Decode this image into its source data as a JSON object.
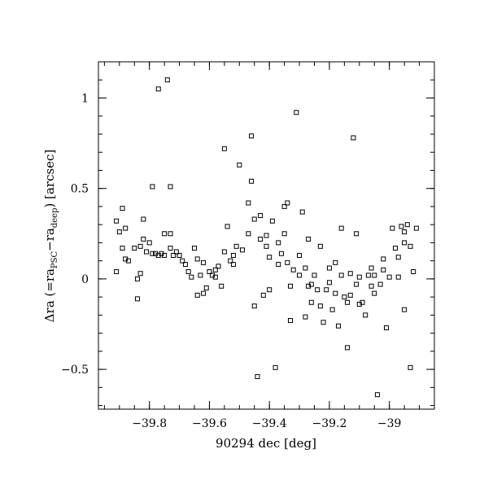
{
  "chart_data": {
    "type": "scatter",
    "xlabel": "90294 dec [deg]",
    "ylabel_parts": {
      "main": "Δra (=ra",
      "sub1": "PSC",
      "mid": "−ra",
      "sub2": "deep",
      "end": ") [arcsec]"
    },
    "xlim": [
      -39.97,
      -38.85
    ],
    "ylim": [
      -0.72,
      1.2
    ],
    "x_ticks": [
      {
        "value": -39.8,
        "label": "−39.8"
      },
      {
        "value": -39.6,
        "label": "−39.6"
      },
      {
        "value": -39.4,
        "label": "−39.4"
      },
      {
        "value": -39.2,
        "label": "−39.2"
      },
      {
        "value": -39.0,
        "label": "−39"
      }
    ],
    "y_ticks": [
      {
        "value": -0.5,
        "label": "−0.5"
      },
      {
        "value": 0,
        "label": "0"
      },
      {
        "value": 0.5,
        "label": "0.5"
      },
      {
        "value": 1,
        "label": "1"
      }
    ],
    "x_minor_step": 0.05,
    "y_minor_step": 0.1,
    "grid": false,
    "marker": "open-square",
    "points": [
      [
        -39.91,
        0.32
      ],
      [
        -39.9,
        0.26
      ],
      [
        -39.89,
        0.39
      ],
      [
        -39.89,
        0.17
      ],
      [
        -39.88,
        0.28
      ],
      [
        -39.88,
        0.11
      ],
      [
        -39.87,
        0.1
      ],
      [
        -39.91,
        0.04
      ],
      [
        -39.85,
        0.17
      ],
      [
        -39.84,
        0.0
      ],
      [
        -39.84,
        -0.11
      ],
      [
        -39.83,
        0.03
      ],
      [
        -39.82,
        0.33
      ],
      [
        -39.82,
        0.22
      ],
      [
        -39.83,
        0.18
      ],
      [
        -39.81,
        0.15
      ],
      [
        -39.8,
        0.2
      ],
      [
        -39.79,
        0.51
      ],
      [
        -39.78,
        0.14
      ],
      [
        -39.77,
        1.05
      ],
      [
        -39.76,
        0.14
      ],
      [
        -39.75,
        0.25
      ],
      [
        -39.75,
        0.13
      ],
      [
        -39.74,
        1.1
      ],
      [
        -39.73,
        0.51
      ],
      [
        -39.73,
        0.25
      ],
      [
        -39.72,
        0.13
      ],
      [
        -39.71,
        0.15
      ],
      [
        -39.7,
        0.13
      ],
      [
        -39.68,
        0.08
      ],
      [
        -39.67,
        0.04
      ],
      [
        -39.66,
        0.01
      ],
      [
        -39.65,
        0.17
      ],
      [
        -39.64,
        0.11
      ],
      [
        -39.64,
        -0.09
      ],
      [
        -39.63,
        0.02
      ],
      [
        -39.62,
        -0.08
      ],
      [
        -39.61,
        -0.05
      ],
      [
        -39.6,
        0.04
      ],
      [
        -39.59,
        0.02
      ],
      [
        -39.58,
        0.01
      ],
      [
        -39.57,
        0.07
      ],
      [
        -39.56,
        -0.04
      ],
      [
        -39.55,
        0.72
      ],
      [
        -39.55,
        0.15
      ],
      [
        -39.54,
        0.29
      ],
      [
        -39.53,
        0.1
      ],
      [
        -39.52,
        0.08
      ],
      [
        -39.51,
        0.18
      ],
      [
        -39.5,
        0.63
      ],
      [
        -39.49,
        0.16
      ],
      [
        -39.47,
        0.42
      ],
      [
        -39.46,
        0.79
      ],
      [
        -39.46,
        0.54
      ],
      [
        -39.45,
        0.33
      ],
      [
        -39.44,
        -0.54
      ],
      [
        -39.43,
        0.35
      ],
      [
        -39.43,
        0.22
      ],
      [
        -39.42,
        -0.09
      ],
      [
        -39.41,
        0.18
      ],
      [
        -39.4,
        -0.06
      ],
      [
        -39.4,
        0.12
      ],
      [
        -39.39,
        0.32
      ],
      [
        -39.38,
        -0.49
      ],
      [
        -39.37,
        0.2
      ],
      [
        -39.36,
        0.14
      ],
      [
        -39.35,
        0.4
      ],
      [
        -39.34,
        0.42
      ],
      [
        -39.34,
        0.09
      ],
      [
        -39.33,
        -0.23
      ],
      [
        -39.32,
        0.05
      ],
      [
        -39.31,
        0.92
      ],
      [
        -39.3,
        0.13
      ],
      [
        -39.29,
        0.37
      ],
      [
        -39.28,
        0.06
      ],
      [
        -39.28,
        -0.21
      ],
      [
        -39.27,
        0.22
      ],
      [
        -39.26,
        -0.03
      ],
      [
        -39.25,
        0.02
      ],
      [
        -39.24,
        -0.06
      ],
      [
        -39.23,
        0.18
      ],
      [
        -39.22,
        -0.24
      ],
      [
        -39.21,
        -0.06
      ],
      [
        -39.2,
        0.06
      ],
      [
        -39.19,
        -0.17
      ],
      [
        -39.18,
        0.09
      ],
      [
        -39.17,
        -0.26
      ],
      [
        -39.16,
        0.28
      ],
      [
        -39.15,
        -0.1
      ],
      [
        -39.14,
        -0.38
      ],
      [
        -39.13,
        -0.09
      ],
      [
        -39.12,
        0.78
      ],
      [
        -39.11,
        0.25
      ],
      [
        -39.1,
        -0.14
      ],
      [
        -39.09,
        -0.13
      ],
      [
        -39.08,
        -0.2
      ],
      [
        -39.07,
        0.02
      ],
      [
        -39.06,
        0.06
      ],
      [
        -39.05,
        -0.08
      ],
      [
        -39.04,
        -0.64
      ],
      [
        -39.03,
        -0.03
      ],
      [
        -39.02,
        0.05
      ],
      [
        -39.01,
        -0.27
      ],
      [
        -39.0,
        0.01
      ],
      [
        -38.99,
        0.28
      ],
      [
        -38.98,
        0.17
      ],
      [
        -38.97,
        0.01
      ],
      [
        -38.96,
        0.29
      ],
      [
        -38.95,
        -0.17
      ],
      [
        -38.95,
        0.2
      ],
      [
        -38.94,
        0.3
      ],
      [
        -38.93,
        -0.49
      ],
      [
        -38.93,
        0.18
      ],
      [
        -38.92,
        0.04
      ],
      [
        -38.91,
        0.28
      ],
      [
        -39.73,
        0.17
      ],
      [
        -39.69,
        0.1
      ],
      [
        -39.58,
        0.05
      ],
      [
        -39.47,
        0.25
      ],
      [
        -39.45,
        -0.15
      ],
      [
        -39.37,
        0.08
      ],
      [
        -39.35,
        0.25
      ],
      [
        -39.3,
        0.02
      ],
      [
        -39.26,
        -0.13
      ],
      [
        -39.2,
        -0.02
      ],
      [
        -39.16,
        0.02
      ],
      [
        -39.13,
        0.03
      ],
      [
        -39.1,
        0.01
      ],
      [
        -39.05,
        0.02
      ],
      [
        -39.02,
        0.11
      ],
      [
        -38.97,
        0.12
      ],
      [
        -38.95,
        0.26
      ],
      [
        -39.79,
        0.14
      ],
      [
        -39.77,
        0.13
      ],
      [
        -39.62,
        0.09
      ],
      [
        -39.52,
        0.13
      ],
      [
        -39.41,
        0.24
      ],
      [
        -39.33,
        -0.04
      ],
      [
        -39.27,
        -0.04
      ],
      [
        -39.23,
        -0.15
      ],
      [
        -39.18,
        -0.08
      ],
      [
        -39.14,
        -0.13
      ],
      [
        -39.11,
        -0.03
      ],
      [
        -39.06,
        -0.04
      ]
    ]
  }
}
